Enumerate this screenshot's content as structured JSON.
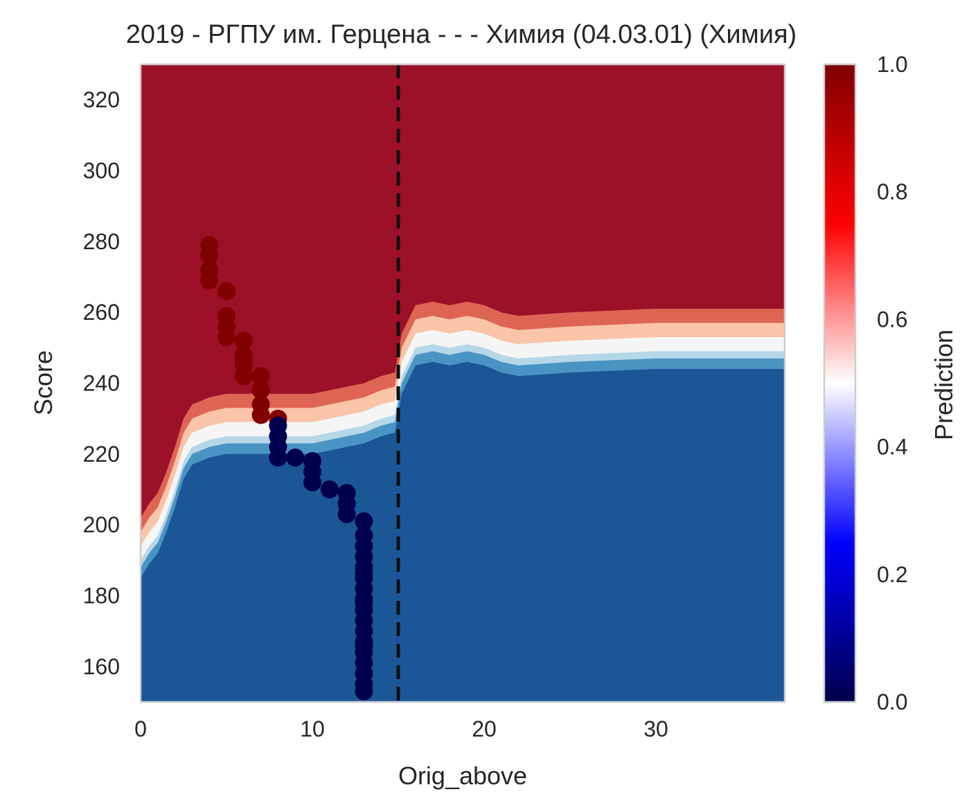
{
  "chart_data": {
    "type": "heatmap",
    "title": "2019 - РГПУ им. Герцена - - - Химия (04.03.01) (Химия)",
    "xlabel": "Orig_above",
    "ylabel": "Score",
    "xlim": [
      0,
      37.5
    ],
    "ylim": [
      150,
      330
    ],
    "x_ticks": [
      0,
      10,
      20,
      30
    ],
    "x_tick_labels": [
      "0",
      "10",
      "20",
      "30"
    ],
    "y_ticks": [
      160,
      180,
      200,
      220,
      240,
      260,
      280,
      300,
      320
    ],
    "y_tick_labels": [
      "160",
      "180",
      "200",
      "220",
      "240",
      "260",
      "280",
      "300",
      "320"
    ],
    "colorbar": {
      "label": "Prediction",
      "range": [
        0,
        1
      ],
      "ticks": [
        0.0,
        0.2,
        0.4,
        0.6,
        0.8,
        1.0
      ],
      "tick_labels": [
        "0.0",
        "0.2",
        "0.4",
        "0.6",
        "0.8",
        "1.0"
      ],
      "colormap": "seismic"
    },
    "vertical_line": {
      "x": 15,
      "style": "dashed",
      "color": "#111111"
    },
    "contour_levels": [
      {
        "level": 0.1,
        "color": "#1b5797"
      },
      {
        "level": 0.3,
        "color": "#4a94c4"
      },
      {
        "level": 0.4,
        "color": "#b5d7e8"
      },
      {
        "level": 0.5,
        "color": "#f5f5f5"
      },
      {
        "level": 0.6,
        "color": "#f9c4a8"
      },
      {
        "level": 0.8,
        "color": "#de6553"
      },
      {
        "level": 1.0,
        "color": "#9c1127"
      }
    ],
    "decision_boundary": {
      "x": [
        0,
        0.5,
        1,
        1.5,
        2,
        2.5,
        3,
        4,
        5,
        6,
        7,
        8,
        9,
        10,
        11,
        12,
        13,
        14,
        14.8,
        15.2,
        16,
        17,
        18,
        19,
        20,
        21,
        22,
        25,
        30,
        37.5
      ],
      "y": [
        192,
        196,
        199,
        205,
        212,
        220,
        224,
        226,
        227,
        227,
        227,
        227,
        227,
        227,
        228,
        229,
        230,
        232,
        233,
        244,
        252,
        253,
        252,
        253,
        252,
        250,
        249,
        250,
        251,
        251
      ]
    },
    "series": [
      {
        "name": "",
        "color": "#800000",
        "x": [
          4,
          4,
          4,
          4,
          5,
          5,
          5,
          5,
          6,
          6,
          6,
          6,
          6,
          7,
          7,
          7,
          7,
          8
        ],
        "y": [
          279,
          276,
          272,
          269,
          266,
          259,
          256,
          253,
          252,
          248,
          245,
          242,
          247,
          242,
          238,
          234,
          231,
          230
        ],
        "value": 1
      },
      {
        "name": "",
        "color": "#00004c",
        "x": [
          8,
          8,
          8,
          8,
          9,
          10,
          10,
          10,
          11,
          12,
          12,
          12,
          13,
          13,
          13,
          13,
          13,
          13,
          13,
          13,
          13,
          13,
          13,
          13,
          13,
          13,
          13,
          13,
          13,
          13,
          13,
          13
        ],
        "y": [
          228,
          225,
          222,
          219,
          219,
          218,
          215,
          212,
          210,
          209,
          206,
          203,
          201,
          197,
          194,
          191,
          188,
          185,
          182,
          179,
          176,
          173,
          170,
          167,
          164,
          161,
          158,
          155,
          153,
          186,
          166,
          178
        ],
        "value": 0
      }
    ]
  }
}
